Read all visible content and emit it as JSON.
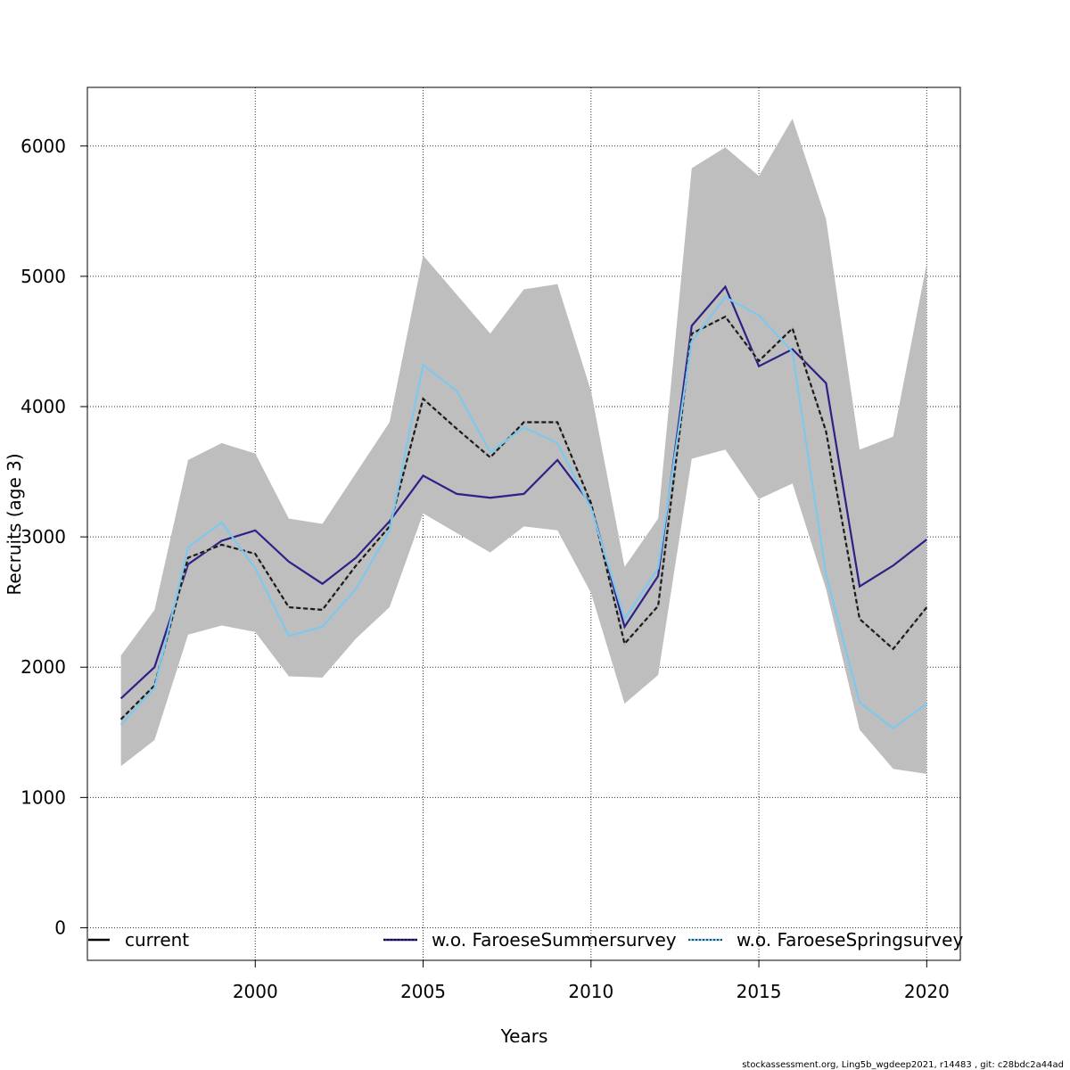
{
  "chart_data": {
    "type": "line",
    "xlabel": "Years",
    "ylabel": "Recruits (age 3)",
    "xlim": [
      1995,
      2021
    ],
    "ylim": [
      -250,
      6450
    ],
    "xticks": [
      2000,
      2005,
      2010,
      2015,
      2020
    ],
    "yticks": [
      0,
      1000,
      2000,
      3000,
      4000,
      5000,
      6000
    ],
    "grid": true,
    "x": [
      1996,
      1997,
      1998,
      1999,
      2000,
      2001,
      2002,
      2003,
      2004,
      2005,
      2006,
      2007,
      2008,
      2009,
      2010,
      2011,
      2012,
      2013,
      2014,
      2015,
      2016,
      2017,
      2018,
      2019,
      2020
    ],
    "confidence_band": {
      "upper": [
        2090,
        2440,
        3590,
        3720,
        3640,
        3140,
        3100,
        3490,
        3880,
        5160,
        4860,
        4560,
        4900,
        4940,
        4120,
        2770,
        3140,
        5830,
        5990,
        5770,
        6210,
        5440,
        3670,
        3770,
        5100
      ],
      "lower": [
        1240,
        1440,
        2250,
        2320,
        2270,
        1930,
        1920,
        2220,
        2460,
        3180,
        3030,
        2880,
        3080,
        3050,
        2570,
        1720,
        1940,
        3600,
        3670,
        3290,
        3410,
        2600,
        1520,
        1220,
        1180
      ],
      "color": "#bebebe"
    },
    "series": [
      {
        "name": "current",
        "values": [
          1600,
          1860,
          2840,
          2940,
          2870,
          2460,
          2440,
          2780,
          3080,
          4060,
          3830,
          3610,
          3880,
          3880,
          3260,
          2180,
          2470,
          4560,
          4690,
          4350,
          4600,
          3810,
          2370,
          2140,
          2460
        ],
        "color": "#1a1a1a",
        "style": "dashed-over-gray"
      },
      {
        "name": "w.o. FaroeseSummersurvey",
        "values": [
          1760,
          2000,
          2790,
          2970,
          3050,
          2810,
          2640,
          2840,
          3120,
          3470,
          3330,
          3300,
          3330,
          3590,
          3250,
          2310,
          2700,
          4620,
          4920,
          4310,
          4440,
          4180,
          2620,
          2780,
          2980
        ],
        "color": "#2b2187"
      },
      {
        "name": "w.o. FaroeseSpringsurvey",
        "values": [
          1560,
          1840,
          2920,
          3110,
          2760,
          2240,
          2310,
          2600,
          3050,
          4320,
          4120,
          3650,
          3840,
          3720,
          3220,
          2370,
          2760,
          4500,
          4840,
          4700,
          4420,
          2710,
          1730,
          1530,
          1720
        ],
        "color": "#7ec8ee"
      }
    ],
    "legend": {
      "placement": "bottom",
      "entries": [
        "current",
        "w.o. FaroeseSummersurvey",
        "w.o. FaroeseSpringsurvey"
      ]
    }
  },
  "footer_text": "stockassessment.org, Ling5b_wgdeep2021, r14483 , git: c28bdc2a44ad"
}
